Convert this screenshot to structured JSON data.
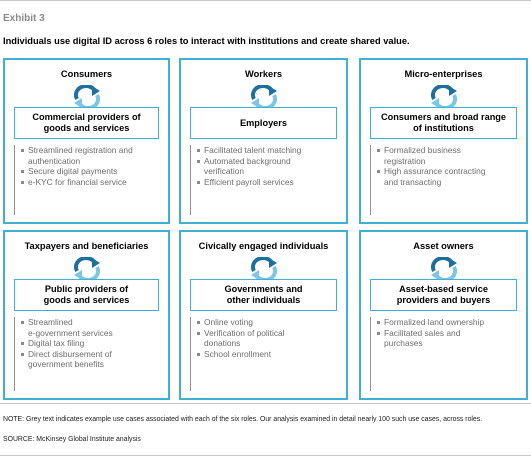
{
  "exhibit": "Exhibit 3",
  "headline": "Individuals use digital ID across 6 roles to interact with institutions and create shared value.",
  "panels": [
    {
      "role": "Consumers",
      "institution": [
        "Commercial providers of",
        "goods and services"
      ],
      "use_cases": [
        [
          "Streamlined registration and",
          "authentication"
        ],
        [
          "Secure digital payments"
        ],
        [
          "e-KYC for financial service"
        ]
      ]
    },
    {
      "role": "Workers",
      "institution": [
        "Employers"
      ],
      "use_cases": [
        [
          "Facilitated talent matching"
        ],
        [
          "Automated background",
          "verification"
        ],
        [
          "Efficient payroll services"
        ]
      ]
    },
    {
      "role": "Micro-enterprises",
      "institution": [
        "Consumers and broad range",
        "of institutions"
      ],
      "use_cases": [
        [
          "Formalized business",
          "registration"
        ],
        [
          "High assurance contracting",
          "and transacting"
        ]
      ]
    },
    {
      "role": "Taxpayers and beneficiaries",
      "institution": [
        "Public providers of",
        "goods and services"
      ],
      "use_cases": [
        [
          "Streamlined",
          "e-government services"
        ],
        [
          "Digital tax filing"
        ],
        [
          "Direct disbursement of",
          "government benefits"
        ]
      ]
    },
    {
      "role": "Civically engaged individuals",
      "institution": [
        "Governments and",
        "other individuals"
      ],
      "use_cases": [
        [
          "Online voting"
        ],
        [
          "Verification of political",
          "donations"
        ],
        [
          "School enrollment"
        ]
      ]
    },
    {
      "role": "Asset owners",
      "institution": [
        "Asset-based service",
        "providers and buyers"
      ],
      "use_cases": [
        [
          "Formalized land  ownership"
        ],
        [
          "Facilitated sales and",
          "purchases"
        ]
      ]
    }
  ],
  "note": "NOTE: Grey text indicates example use cases associated with each of the six roles.  Our analysis examined in detail nearly 100 such use cases, across roles.",
  "source": "SOURCE:  McKinsey Global Institute analysis",
  "colors": {
    "accent": "#3fb0d3",
    "arrow_dark": "#1f6f9e",
    "arrow_light": "#7cc6e4",
    "use_case_text": "#6e6e6e"
  }
}
